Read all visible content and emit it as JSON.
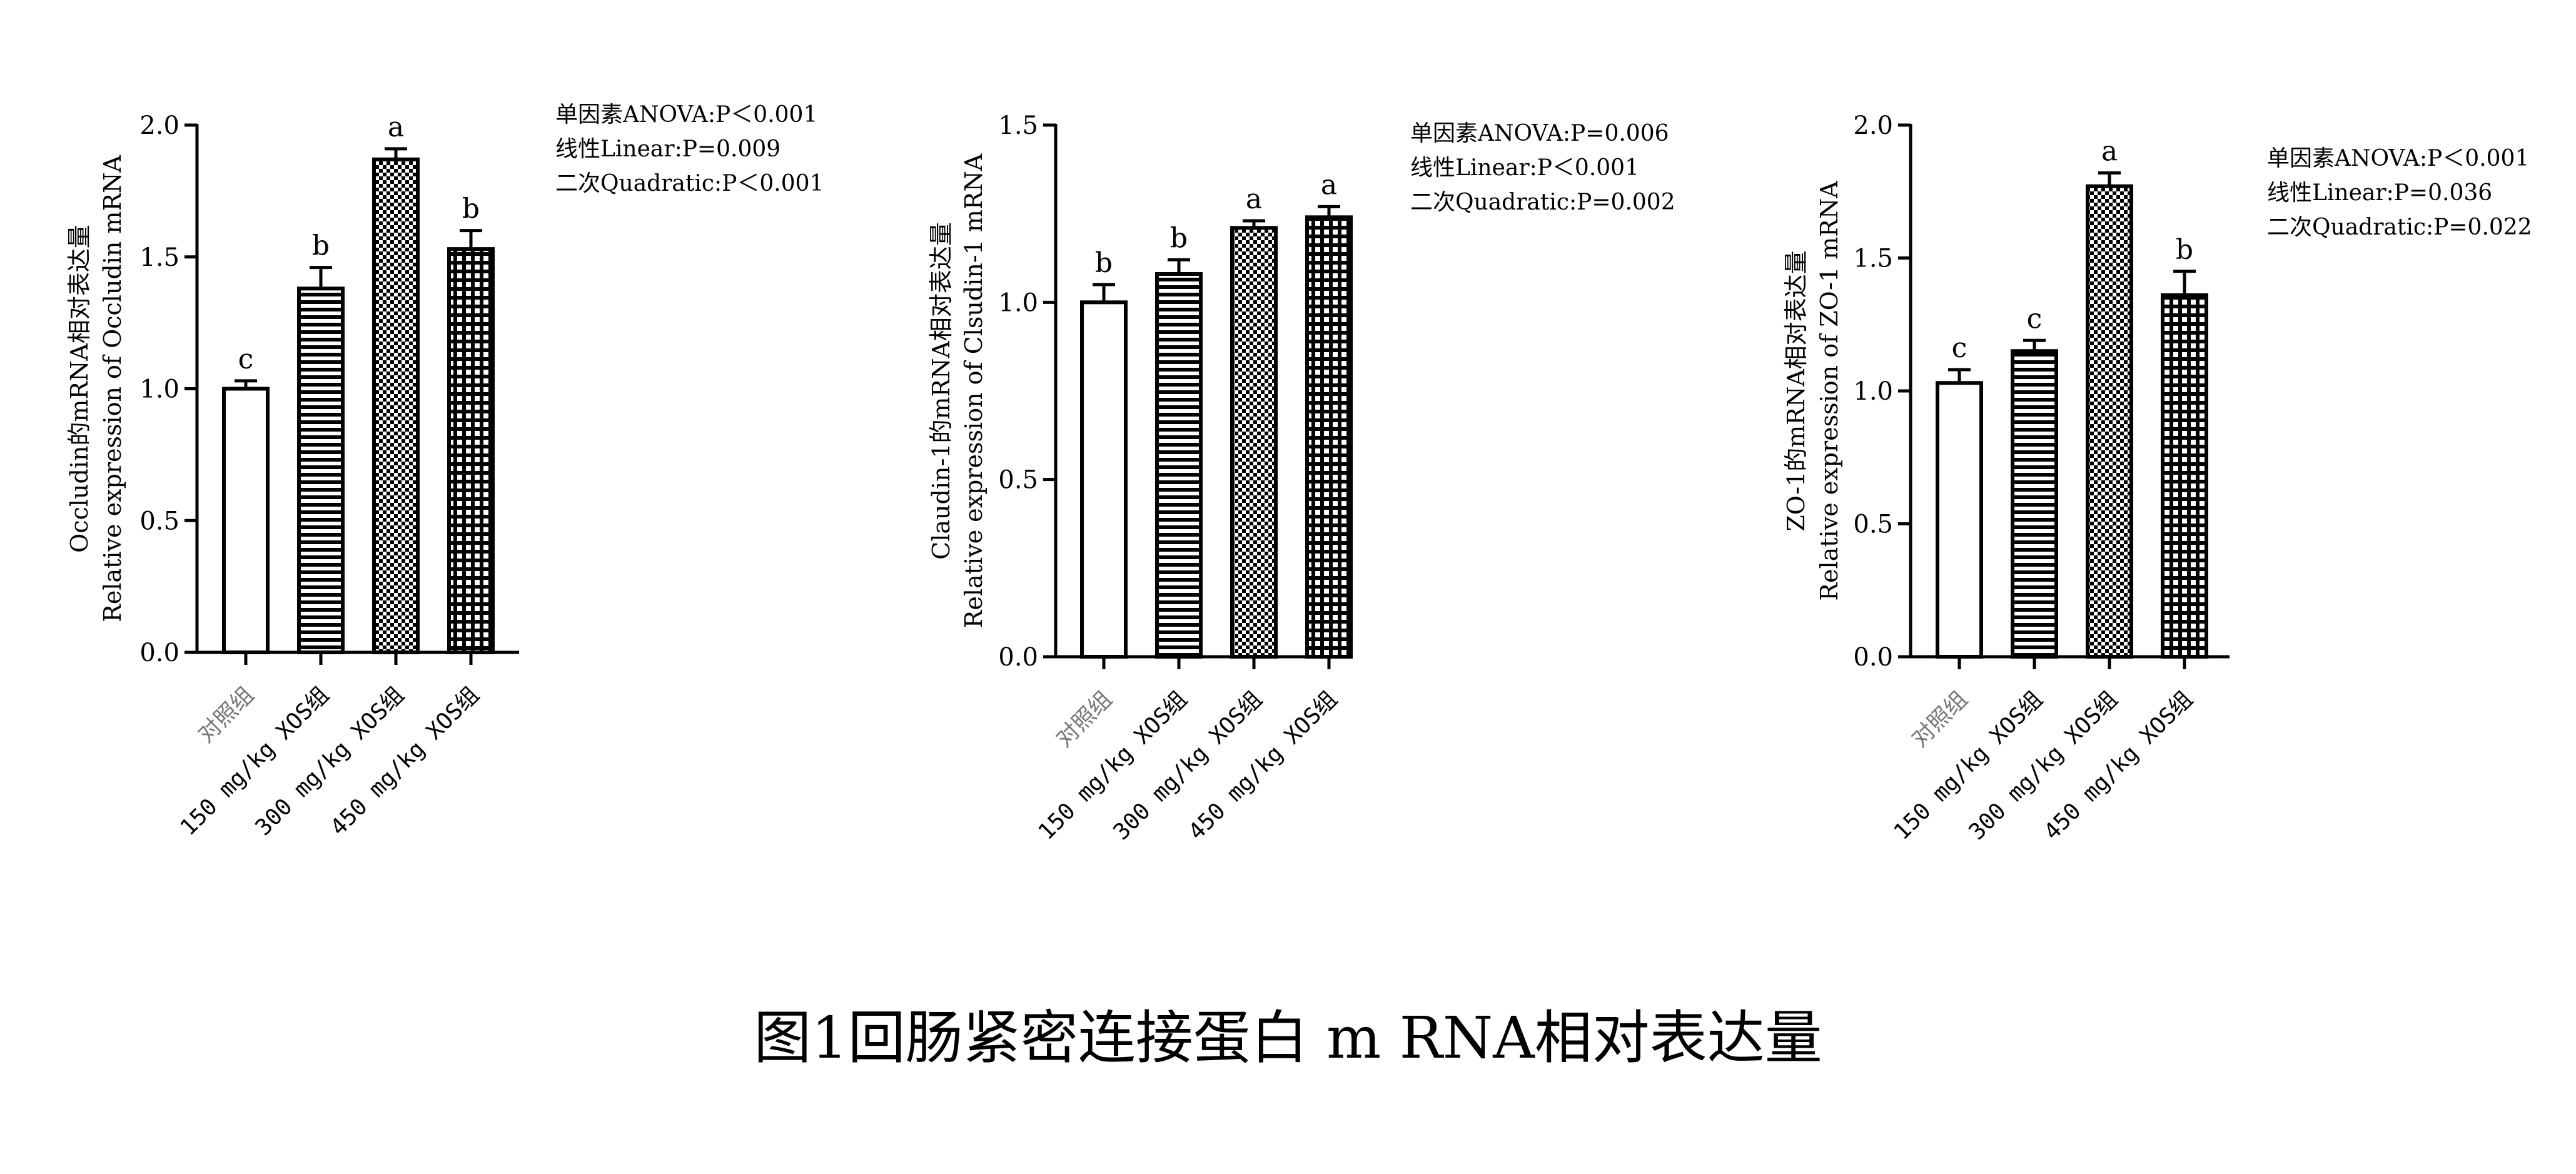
{
  "figure_caption": "图1回肠紧密连接蛋白 m RNA相对表达量",
  "chart_data": [
    {
      "type": "bar",
      "categories": [
        "对照组",
        "150 mg/kg XOS组",
        "300 mg/kg XOS组",
        "450 mg/kg XOS组"
      ],
      "values": [
        1.0,
        1.38,
        1.87,
        1.53
      ],
      "errors": [
        0.03,
        0.08,
        0.04,
        0.07
      ],
      "significance": [
        "c",
        "b",
        "a",
        "b"
      ],
      "ylabel_cn": "Occludin的mRNA相对表达量",
      "ylabel_en": "Relative expression of Occludin mRNA",
      "ylim": [
        0,
        2.0
      ],
      "yticks": [
        "0.0",
        "0.5",
        "1.0",
        "1.5",
        "2.0"
      ],
      "stats": [
        "单因素ANOVA:P＜0.001",
        "线性Linear:P=0.009",
        "二次Quadratic:P＜0.001"
      ]
    },
    {
      "type": "bar",
      "categories": [
        "对照组",
        "150 mg/kg XOS组",
        "300 mg/kg XOS组",
        "450 mg/kg XOS组"
      ],
      "values": [
        1.0,
        1.08,
        1.21,
        1.24
      ],
      "errors": [
        0.05,
        0.04,
        0.02,
        0.03
      ],
      "significance": [
        "b",
        "b",
        "a",
        "a"
      ],
      "ylabel_cn": "Claudin-1的mRNA相对表达量",
      "ylabel_en": "Relative expression of Clsudin-1 mRNA",
      "ylim": [
        0,
        1.5
      ],
      "yticks": [
        "0.0",
        "0.5",
        "1.0",
        "1.5"
      ],
      "stats": [
        "单因素ANOVA:P=0.006",
        "线性Linear:P＜0.001",
        "二次Quadratic:P=0.002"
      ]
    },
    {
      "type": "bar",
      "categories": [
        "对照组",
        "150 mg/kg XOS组",
        "300 mg/kg XOS组",
        "450 mg/kg XOS组"
      ],
      "values": [
        1.03,
        1.15,
        1.77,
        1.36
      ],
      "errors": [
        0.05,
        0.04,
        0.05,
        0.09
      ],
      "significance": [
        "c",
        "c",
        "a",
        "b"
      ],
      "ylabel_cn": "ZO-1的mRNA相对表达量",
      "ylabel_en": "Relative expression of ZO-1 mRNA",
      "ylim": [
        0,
        2.0
      ],
      "yticks": [
        "0.0",
        "0.5",
        "1.0",
        "1.5",
        "2.0"
      ],
      "stats": [
        "单因素ANOVA:P＜0.001",
        "线性Linear:P=0.036",
        "二次Quadratic:P=0.022"
      ]
    }
  ]
}
